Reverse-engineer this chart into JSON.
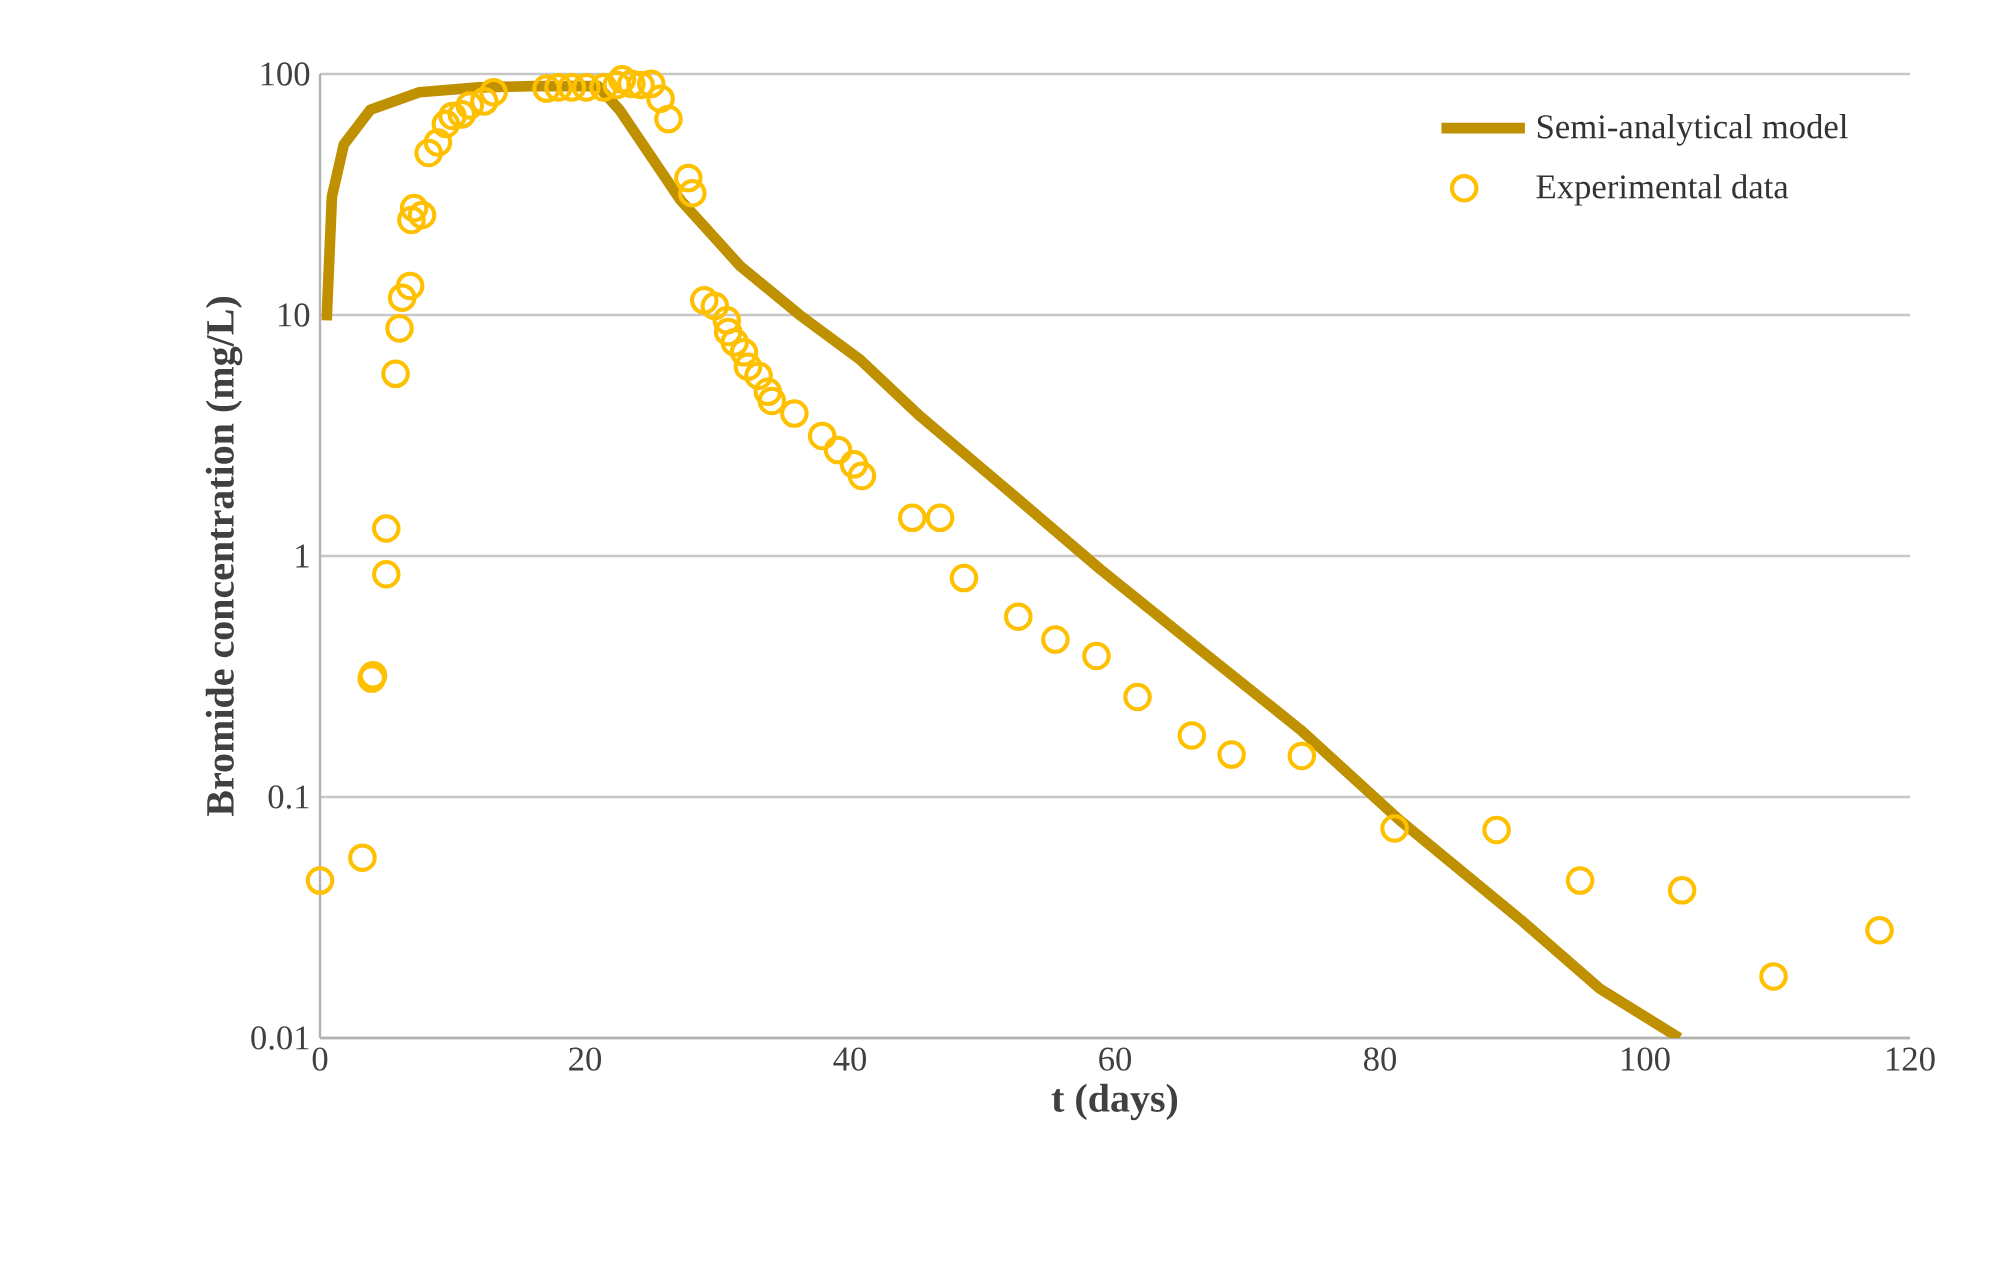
{
  "chart_data": {
    "type": "scatter",
    "xlabel": "t (days)",
    "ylabel": "Bromide concentration (mg/L)",
    "log": "y",
    "grid": "y",
    "legend": "top right",
    "xlim": [
      0,
      120
    ],
    "xticks": [
      0,
      20,
      40,
      60,
      80,
      100,
      120
    ],
    "ylim": [
      0.01,
      100
    ],
    "yticks": [
      0.01,
      0.1,
      1,
      10,
      100
    ],
    "series": [
      {
        "name": "Semi-analytical model",
        "type": "line",
        "line_style": "solid",
        "marker": "none",
        "color": "#bf9000",
        "x": [
          0.5,
          0.9,
          1.8,
          3.8,
          7.5,
          12,
          16,
          21,
          22.6,
          27.2,
          31.7,
          36.2,
          40.8,
          45.3,
          51.3,
          58.9,
          66.4,
          74.0,
          81.5,
          90.6,
          96.6,
          102.6
        ],
        "values": [
          9.5,
          31,
          51,
          71,
          84,
          88,
          89,
          89,
          71,
          30,
          16,
          10,
          6.5,
          3.8,
          2.0,
          0.88,
          0.41,
          0.19,
          0.08,
          0.031,
          0.016,
          0.01
        ]
      },
      {
        "name": "Experimental data",
        "marker": "circle",
        "color": "#ffc000",
        "x": [
          0,
          3.2,
          3.9,
          4.0,
          5.0,
          5.0,
          5.7,
          6.0,
          6.2,
          6.8,
          6.9,
          7.1,
          7.7,
          8.2,
          8.9,
          9.5,
          10.0,
          10.7,
          11.3,
          12.4,
          13.1,
          17.1,
          18.0,
          19.0,
          20.1,
          21.4,
          22.4,
          22.8,
          23.5,
          24.2,
          25.0,
          25.7,
          26.3,
          27.8,
          28.1,
          29.0,
          29.8,
          30.7,
          30.8,
          31.3,
          32.0,
          32.3,
          33.1,
          33.8,
          34.1,
          35.8,
          37.9,
          39.1,
          40.3,
          40.9,
          44.7,
          46.8,
          48.6,
          52.7,
          55.5,
          58.6,
          61.7,
          65.8,
          68.8,
          74.1,
          81.1,
          88.8,
          95.1,
          102.8,
          109.7,
          117.7
        ],
        "values": [
          0.045,
          0.056,
          0.31,
          0.32,
          0.84,
          1.3,
          5.7,
          8.8,
          11.8,
          13.2,
          24.8,
          27.8,
          26,
          47,
          52,
          62,
          67,
          68,
          74,
          77,
          84,
          87,
          88,
          88,
          88,
          88,
          90,
          95,
          91,
          90,
          91,
          79,
          65,
          37,
          32,
          11.5,
          10.9,
          9.5,
          8.5,
          7.7,
          7.0,
          6.1,
          5.6,
          4.8,
          4.4,
          3.9,
          3.15,
          2.75,
          2.4,
          2.15,
          1.44,
          1.44,
          0.81,
          0.56,
          0.45,
          0.385,
          0.26,
          0.18,
          0.15,
          0.148,
          0.074,
          0.073,
          0.045,
          0.041,
          0.018,
          0.028
        ]
      }
    ]
  }
}
